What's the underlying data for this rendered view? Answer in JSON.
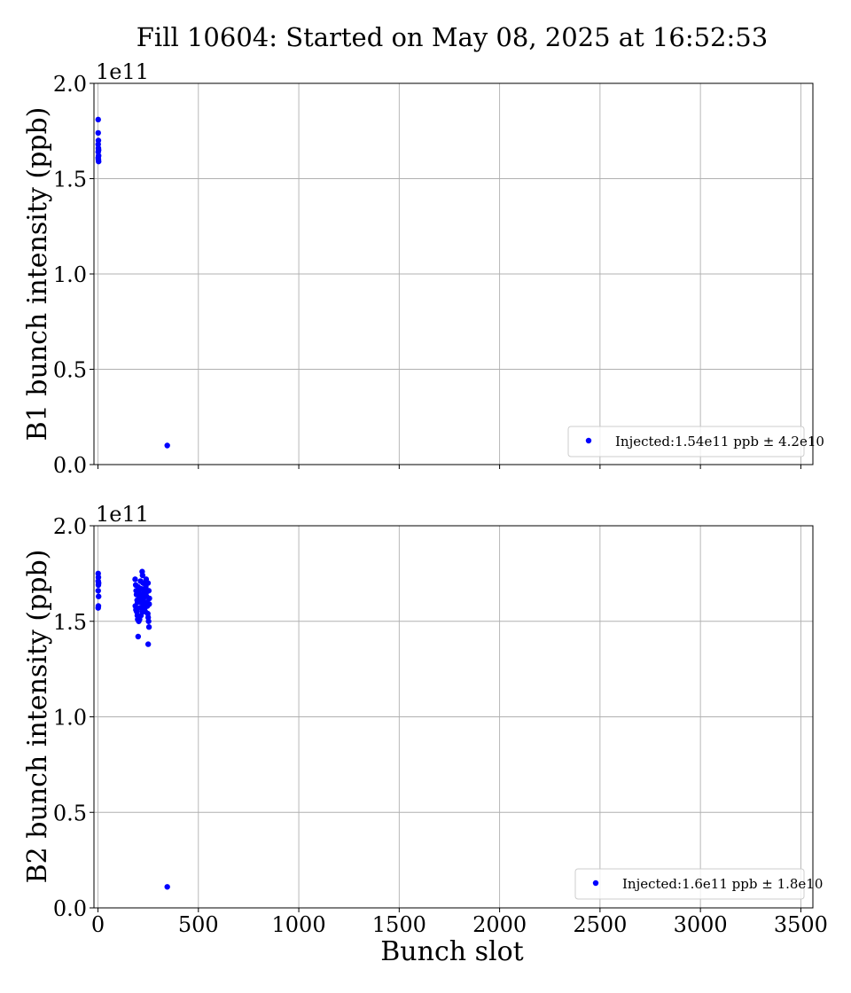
{
  "title": "Fill 10604: Started on May 08, 2025 at 16:52:53",
  "xlabel": "Bunch slot",
  "colors": {
    "points": "#0000ff",
    "grid": "#b0b0b0"
  },
  "chart_data": [
    {
      "type": "scatter",
      "ylabel": "B1 bunch intensity (ppb)",
      "offset_label": "1e11",
      "xlim": [
        -20,
        3560
      ],
      "ylim": [
        0.0,
        2.0
      ],
      "xticks": [
        0,
        500,
        1000,
        1500,
        2000,
        2500,
        3000,
        3500
      ],
      "xtick_labels_visible": false,
      "yticks": [
        0.0,
        0.5,
        1.0,
        1.5,
        2.0
      ],
      "ytick_labels": [
        "0.0",
        "0.5",
        "1.0",
        "1.5",
        "2.0"
      ],
      "grid": true,
      "legend": {
        "position": "lower-right",
        "label": "Injected:1.54e11 ppb ± 4.2e10"
      },
      "series": [
        {
          "points": [
            [
              1,
              1.81
            ],
            [
              1,
              1.74
            ],
            [
              2,
              1.7
            ],
            [
              1,
              1.68
            ],
            [
              2,
              1.66
            ],
            [
              3,
              1.65
            ],
            [
              1,
              1.64
            ],
            [
              3,
              1.62
            ],
            [
              2,
              1.6
            ],
            [
              1,
              1.61
            ],
            [
              3,
              1.59
            ],
            [
              345,
              0.1
            ]
          ]
        }
      ]
    },
    {
      "type": "scatter",
      "ylabel": "B2 bunch intensity (ppb)",
      "offset_label": "1e11",
      "xlim": [
        -20,
        3560
      ],
      "ylim": [
        0.0,
        2.0
      ],
      "xticks": [
        0,
        500,
        1000,
        1500,
        2000,
        2500,
        3000,
        3500
      ],
      "xtick_labels": [
        "0",
        "500",
        "1000",
        "1500",
        "2000",
        "2500",
        "3000",
        "3500"
      ],
      "yticks": [
        0.0,
        0.5,
        1.0,
        1.5,
        2.0
      ],
      "ytick_labels": [
        "0.0",
        "0.5",
        "1.0",
        "1.5",
        "2.0"
      ],
      "grid": true,
      "legend": {
        "position": "lower-right",
        "label": "Injected:1.6e11 ppb ± 1.8e10"
      },
      "series": [
        {
          "points": [
            [
              1,
              1.75
            ],
            [
              2,
              1.73
            ],
            [
              1,
              1.71
            ],
            [
              3,
              1.7
            ],
            [
              2,
              1.69
            ],
            [
              1,
              1.66
            ],
            [
              3,
              1.63
            ],
            [
              2,
              1.58
            ],
            [
              1,
              1.57
            ],
            [
              185,
              1.72
            ],
            [
              188,
              1.69
            ],
            [
              190,
              1.66
            ],
            [
              192,
              1.64
            ],
            [
              195,
              1.61
            ],
            [
              186,
              1.58
            ],
            [
              189,
              1.56
            ],
            [
              193,
              1.55
            ],
            [
              196,
              1.53
            ],
            [
              198,
              1.51
            ],
            [
              200,
              1.68
            ],
            [
              202,
              1.65
            ],
            [
              205,
              1.62
            ],
            [
              208,
              1.6
            ],
            [
              210,
              1.57
            ],
            [
              203,
              1.5
            ],
            [
              200,
              1.42
            ],
            [
              212,
              1.71
            ],
            [
              215,
              1.67
            ],
            [
              218,
              1.64
            ],
            [
              220,
              1.76
            ],
            [
              222,
              1.74
            ],
            [
              225,
              1.7
            ],
            [
              228,
              1.66
            ],
            [
              226,
              1.62
            ],
            [
              224,
              1.58
            ],
            [
              221,
              1.55
            ],
            [
              230,
              1.6
            ],
            [
              233,
              1.57
            ],
            [
              236,
              1.55
            ],
            [
              238,
              1.68
            ],
            [
              240,
              1.65
            ],
            [
              242,
              1.63
            ],
            [
              244,
              1.6
            ],
            [
              246,
              1.58
            ],
            [
              248,
              1.54
            ],
            [
              250,
              1.52
            ],
            [
              252,
              1.5
            ],
            [
              254,
              1.47
            ],
            [
              250,
              1.38
            ],
            [
              256,
              1.62
            ],
            [
              255,
              1.59
            ],
            [
              253,
              1.66
            ],
            [
              249,
              1.7
            ],
            [
              240,
              1.72
            ],
            [
              232,
              1.63
            ],
            [
              214,
              1.53
            ],
            [
              207,
              1.51
            ],
            [
              197,
              1.6
            ],
            [
              345,
              0.11
            ]
          ]
        }
      ]
    }
  ]
}
